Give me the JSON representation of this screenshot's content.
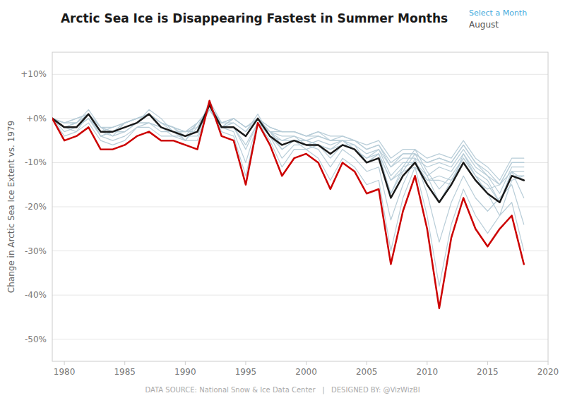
{
  "chart_data": {
    "type": "line",
    "title": "Arctic Sea Ice is Disappearing Fastest in Summer Months",
    "subtitle": "August",
    "annotations": [
      "Select a Month",
      "DATA SOURCE: National Snow & Ice Data Center   |   DESIGNED BY: @VizWizBI"
    ],
    "y_label": "Change in Arctic Sea Ice Extent vs. 1979",
    "x": [
      1979,
      1980,
      1981,
      1982,
      1983,
      1984,
      1985,
      1986,
      1987,
      1988,
      1989,
      1990,
      1991,
      1992,
      1993,
      1994,
      1995,
      1996,
      1997,
      1998,
      1999,
      2000,
      2001,
      2002,
      2003,
      2004,
      2005,
      2006,
      2007,
      2008,
      2009,
      2010,
      2011,
      2012,
      2013,
      2014,
      2015,
      2016,
      2017,
      2018
    ],
    "series": [
      {
        "color": "#b8cdd8",
        "values": [
          0,
          -2,
          -3,
          1,
          -4,
          -3,
          -2,
          -1,
          2,
          0,
          -3,
          -5,
          -1,
          2,
          -2,
          -1,
          -3,
          1,
          -4,
          -7,
          -5,
          -7,
          -6,
          -7,
          -6,
          -6,
          -10,
          -8,
          -14,
          -12,
          -11,
          -14,
          -13,
          -14,
          -9,
          -13,
          -17,
          -22,
          -14,
          -13
        ]
      },
      {
        "color": "#b8cdd8",
        "values": [
          0,
          -2,
          -1,
          2,
          -2,
          -4,
          -1,
          0,
          1,
          -1,
          -2,
          -5,
          -2,
          3,
          -2,
          0,
          -2,
          0,
          -4,
          -5,
          -5,
          -6,
          -5,
          -6,
          -5,
          -7,
          -9,
          -7,
          -13,
          -10,
          -10,
          -13,
          -11,
          -12,
          -8,
          -12,
          -14,
          -19,
          -12,
          -12
        ]
      },
      {
        "color": "#b8cdd8",
        "values": [
          0,
          -1,
          -1,
          1,
          -2,
          -3,
          -1,
          0,
          1,
          -1,
          -2,
          -4,
          -1,
          2,
          -2,
          0,
          -2,
          0,
          -3,
          -4,
          -4,
          -5,
          -4,
          -5,
          -5,
          -6,
          -8,
          -7,
          -11,
          -9,
          -9,
          -11,
          -10,
          -11,
          -7,
          -11,
          -13,
          -17,
          -11,
          -11
        ]
      },
      {
        "color": "#b8cdd8",
        "values": [
          0,
          -1,
          -1,
          1,
          -2,
          -3,
          -1,
          0,
          1,
          -1,
          -2,
          -3,
          -1,
          2,
          -2,
          0,
          -2,
          0,
          -3,
          -3,
          -3,
          -4,
          -3,
          -5,
          -5,
          -5,
          -7,
          -6,
          -10,
          -8,
          -8,
          -10,
          -9,
          -10,
          -6,
          -10,
          -12,
          -15,
          -10,
          -10
        ]
      },
      {
        "color": "#b8cdd8",
        "values": [
          0,
          -1,
          0,
          1,
          -2,
          -2,
          -1,
          0,
          1,
          -1,
          -2,
          -3,
          -1,
          2,
          -1,
          0,
          -2,
          0,
          -2,
          -3,
          -3,
          -4,
          -3,
          -4,
          -4,
          -5,
          -6,
          -5,
          -9,
          -7,
          -7,
          -9,
          -8,
          -9,
          -5,
          -9,
          -11,
          -14,
          -9,
          -9
        ]
      },
      {
        "color": "#b8cdd8",
        "values": [
          0,
          -1,
          0,
          1,
          -3,
          -2,
          -1,
          0,
          1,
          -1,
          -3,
          -3,
          -2,
          3,
          -1,
          0,
          -2,
          0,
          -2,
          -3,
          -3,
          -4,
          -4,
          -5,
          -4,
          -5,
          -7,
          -6,
          -11,
          -8,
          -8,
          -10,
          -9,
          -10,
          -6,
          -10,
          -13,
          -15,
          -10,
          -10
        ]
      },
      {
        "color": "#b8cdd8",
        "values": [
          0,
          -2,
          -1,
          1,
          -4,
          -3,
          -3,
          -1,
          1,
          -2,
          -4,
          -4,
          -3,
          4,
          -1,
          -1,
          -3,
          0,
          -3,
          -5,
          -4,
          -6,
          -6,
          -7,
          -5,
          -7,
          -10,
          -8,
          -17,
          -11,
          -10,
          -14,
          -14,
          -15,
          -8,
          -13,
          -17,
          -19,
          -13,
          -13
        ]
      },
      {
        "color": "#b8cdd8",
        "values": [
          0,
          -4,
          -3,
          -1,
          -5,
          -6,
          -5,
          -2,
          -2,
          -4,
          -4,
          -5,
          -5,
          3,
          -3,
          -4,
          -13,
          -1,
          -5,
          -11,
          -7,
          -7,
          -9,
          -14,
          -9,
          -11,
          -15,
          -14,
          -30,
          -18,
          -11,
          -22,
          -38,
          -24,
          -16,
          -22,
          -26,
          -22,
          -19,
          -30
        ]
      },
      {
        "color": "#b8cdd8",
        "values": [
          0,
          -3,
          -2,
          0,
          -4,
          -5,
          -4,
          -2,
          -1,
          -3,
          -3,
          -4,
          -4,
          3,
          -2,
          -3,
          -10,
          -1,
          -4,
          -9,
          -6,
          -6,
          -7,
          -11,
          -7,
          -9,
          -12,
          -11,
          -23,
          -15,
          -9,
          -17,
          -28,
          -19,
          -13,
          -18,
          -21,
          -18,
          -15,
          -24
        ]
      },
      {
        "color": "#b8cdd8",
        "values": [
          0,
          -2,
          -2,
          0,
          -3,
          -4,
          -3,
          -1,
          -1,
          -2,
          -3,
          -3,
          -3,
          2,
          -2,
          -2,
          -7,
          -1,
          -3,
          -7,
          -5,
          -5,
          -6,
          -9,
          -6,
          -7,
          -10,
          -9,
          -17,
          -12,
          -8,
          -13,
          -19,
          -14,
          -10,
          -14,
          -16,
          -15,
          -12,
          -18
        ]
      },
      {
        "color": "#b8cdd8",
        "values": [
          0,
          -2,
          -2,
          0,
          -3,
          -3,
          -3,
          -1,
          -1,
          -2,
          -3,
          -4,
          -3,
          2,
          -2,
          -2,
          -6,
          -1,
          -3,
          -6,
          -5,
          -5,
          -6,
          -8,
          -6,
          -7,
          -9,
          -8,
          -14,
          -11,
          -7,
          -12,
          -16,
          -13,
          -9,
          -13,
          -15,
          -19,
          -12,
          -14
        ]
      },
      {
        "color": "#1a1a1a",
        "values": [
          0,
          -2,
          -2,
          1,
          -3,
          -3,
          -2,
          -1,
          1,
          -2,
          -3,
          -4,
          -3,
          3,
          -2,
          -2,
          -4,
          0,
          -4,
          -6,
          -5,
          -6,
          -6,
          -8,
          -6,
          -7,
          -10,
          -9,
          -18,
          -13,
          -10,
          -15,
          -19,
          -15,
          -10,
          -14,
          -17,
          -19,
          -13,
          -14
        ]
      },
      {
        "color": "#cc0000",
        "values": [
          0,
          -5,
          -4,
          -2,
          -7,
          -7,
          -6,
          -4,
          -3,
          -5,
          -5,
          -6,
          -7,
          4,
          -4,
          -5,
          -15,
          -1,
          -6,
          -13,
          -9,
          -8,
          -10,
          -16,
          -10,
          -12,
          -17,
          -16,
          -33,
          -21,
          -13,
          -25,
          -43,
          -27,
          -18,
          -25,
          -29,
          -25,
          -22,
          -33
        ]
      }
    ],
    "xlim": [
      1979,
      2020
    ],
    "ylim": [
      -55,
      15
    ],
    "xticks": [
      1980,
      1985,
      1990,
      1995,
      2000,
      2005,
      2010,
      2015,
      2020
    ],
    "yticks": [
      {
        "value": 10,
        "label": "+10%"
      },
      {
        "value": 0,
        "label": "+0%"
      },
      {
        "value": -10,
        "label": "-10%"
      },
      {
        "value": -20,
        "label": "-20%"
      },
      {
        "value": -30,
        "label": "-30%"
      },
      {
        "value": -40,
        "label": "-40%"
      },
      {
        "value": -50,
        "label": "-50%"
      }
    ],
    "grid": true
  }
}
